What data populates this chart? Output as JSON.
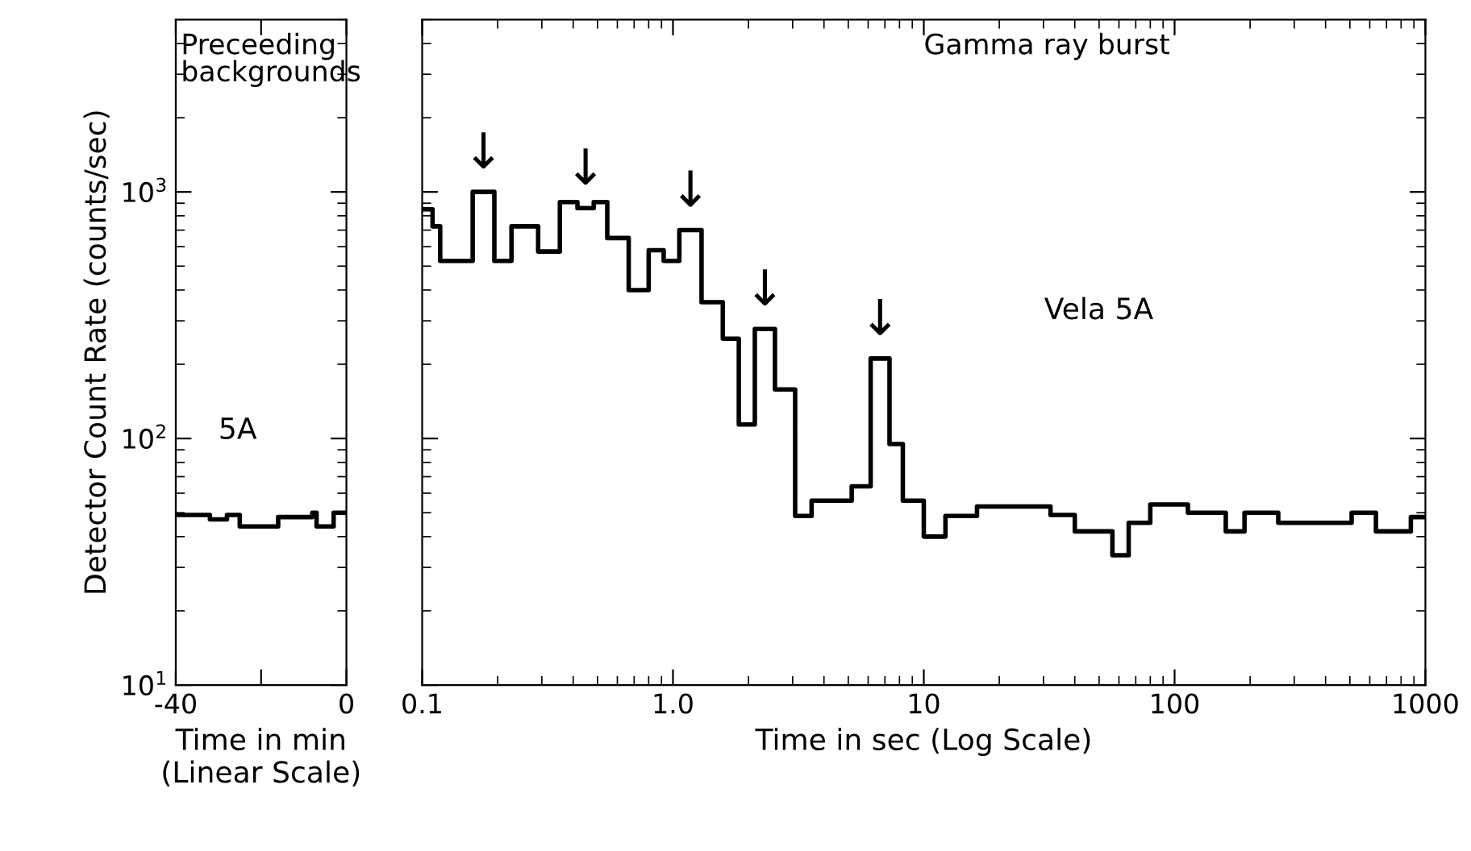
{
  "chart_data": [
    {
      "type": "step",
      "title": "Preceeding\nbackgrounds",
      "xlabel": "Time in min\n(Linear Scale)",
      "ylabel": "Detector Count Rate (counts/sec)",
      "series": [
        {
          "name": "5A",
          "color": "#000000",
          "x": [
            -40,
            -32,
            -28,
            -25,
            -16,
            -8,
            -7,
            -3,
            0
          ],
          "values": [
            49,
            47,
            49,
            44,
            48,
            50,
            44,
            50,
            50
          ]
        }
      ],
      "xlim": [
        -40,
        0
      ],
      "xticks": [
        -40,
        {
          "value": -20,
          "label": null
        },
        0
      ],
      "log": "y",
      "ylim": [
        10,
        5000
      ],
      "yticks": [
        {
          "value": 10,
          "label": "10$^{1}$"
        },
        {
          "value": 100,
          "label": "10$^{2}$"
        },
        {
          "value": 1000,
          "label": "10$^{3}$"
        }
      ],
      "grid": false,
      "legend": false
    },
    {
      "type": "step",
      "title": "Gamma ray burst",
      "xlabel": "Time in sec (Log Scale)",
      "series": [
        {
          "name": "Vela 5A",
          "color": "#000000",
          "x": [
            0.1,
            0.11,
            0.118,
            0.159,
            0.194,
            0.227,
            0.29,
            0.354,
            0.416,
            0.483,
            0.547,
            0.666,
            0.8,
            0.918,
            1.06,
            1.3,
            1.58,
            1.83,
            2.12,
            2.55,
            3.07,
            3.57,
            5.16,
            6.14,
            7.3,
            8.25,
            10,
            12.2,
            16.3,
            32,
            40,
            56.5,
            65.6,
            80,
            113,
            160,
            190,
            259,
            508,
            635,
            875,
            1000
          ],
          "values": [
            850,
            725,
            525,
            1000,
            525,
            725,
            573,
            910,
            860,
            910,
            650,
            400,
            580,
            525,
            700,
            357,
            254,
            114,
            278,
            158,
            48.5,
            56,
            64,
            211,
            95,
            56,
            40,
            48.5,
            53,
            49,
            42,
            33.6,
            45.5,
            54,
            50,
            42,
            50,
            45.5,
            50,
            42,
            48,
            48
          ]
        }
      ],
      "annotations": [
        {
          "text": "↓",
          "x": 0.159,
          "y": 1000
        },
        {
          "text": "↓",
          "x": 0.416,
          "y": 860
        },
        {
          "text": "↓",
          "x": 1.06,
          "y": 700
        },
        {
          "text": "↓",
          "x": 2.12,
          "y": 278
        },
        {
          "text": "↓",
          "x": 6.14,
          "y": 211
        }
      ],
      "log": "xy",
      "xlim": [
        0.1,
        1000
      ],
      "xticks": [
        0.1,
        {
          "value": 1,
          "label": "1.0"
        },
        10,
        100,
        1000
      ],
      "ylim": [
        10,
        5000
      ],
      "yticks": [
        {
          "value": 10,
          "label": null
        },
        {
          "value": 100,
          "label": null
        },
        {
          "value": 1000,
          "label": null
        }
      ],
      "tick_labels": "x",
      "grid": false,
      "legend": false
    }
  ]
}
